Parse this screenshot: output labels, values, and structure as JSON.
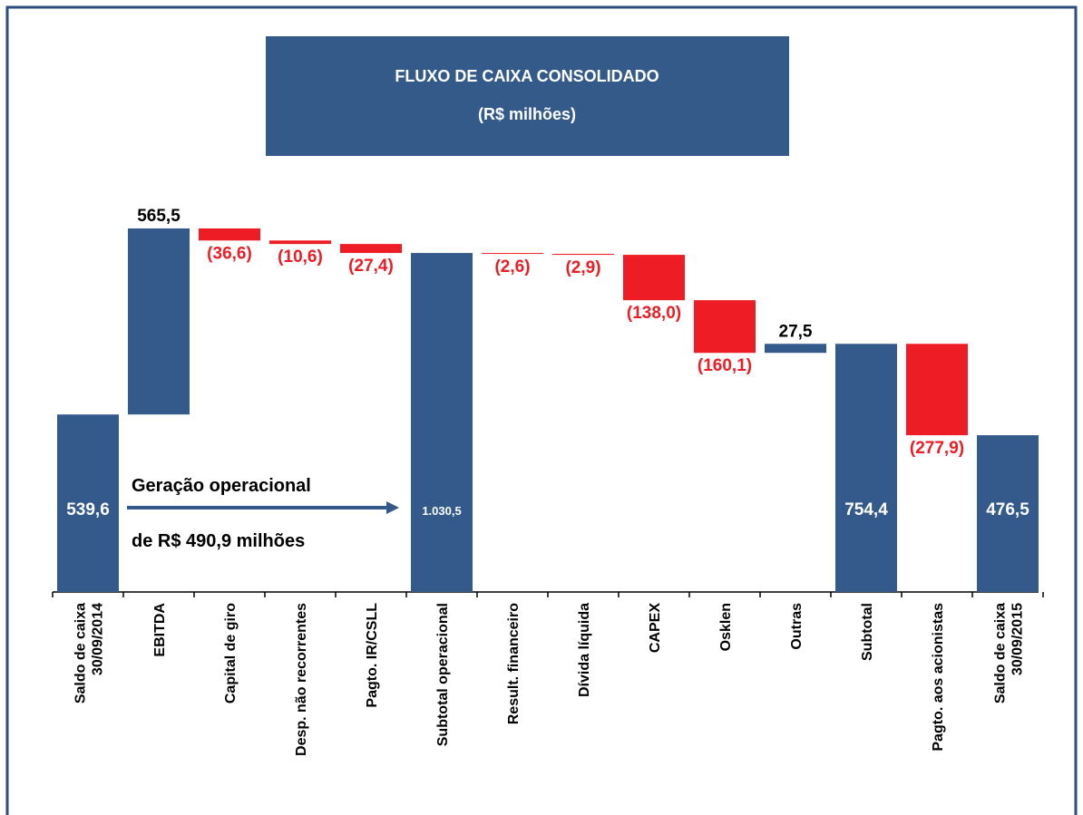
{
  "chart_data": {
    "type": "waterfall",
    "title": "FLUXO DE CAIXA CONSOLIDADO",
    "subtitle": "(R$ milhões)",
    "categories": [
      "Saldo de caixa\n30/09/2014",
      "EBITDA",
      "Capital de giro",
      "Desp. não recorrentes",
      "Pagto. IR/CSLL",
      "Subtotal operacional",
      "Result. financeiro",
      "Dívida líquida",
      "CAPEX",
      "Osklen",
      "Outras",
      "Subtotal",
      "Pagto. aos acionistas",
      "Saldo de caixa\n30/09/2015"
    ],
    "values": [
      539.6,
      565.5,
      -36.6,
      -10.6,
      -27.4,
      1030.5,
      -2.6,
      -2.9,
      -138.0,
      -160.1,
      27.5,
      754.4,
      -277.9,
      476.5
    ],
    "value_labels": [
      "539,6",
      "565,5",
      "(36,6)",
      "(10,6)",
      "(27,4)",
      "1.030,5",
      "(2,6)",
      "(2,9)",
      "(138,0)",
      "(160,1)",
      "27,5",
      "754,4",
      "(277,9)",
      "476,5"
    ],
    "total_indices": [
      0,
      5,
      11,
      13
    ],
    "colors": {
      "total": "#335a8a",
      "increase": "#335a8a",
      "decrease": "#ee1c24"
    },
    "annotations": [
      "Geração operacional",
      "de R$ 490,9 milhões"
    ]
  }
}
